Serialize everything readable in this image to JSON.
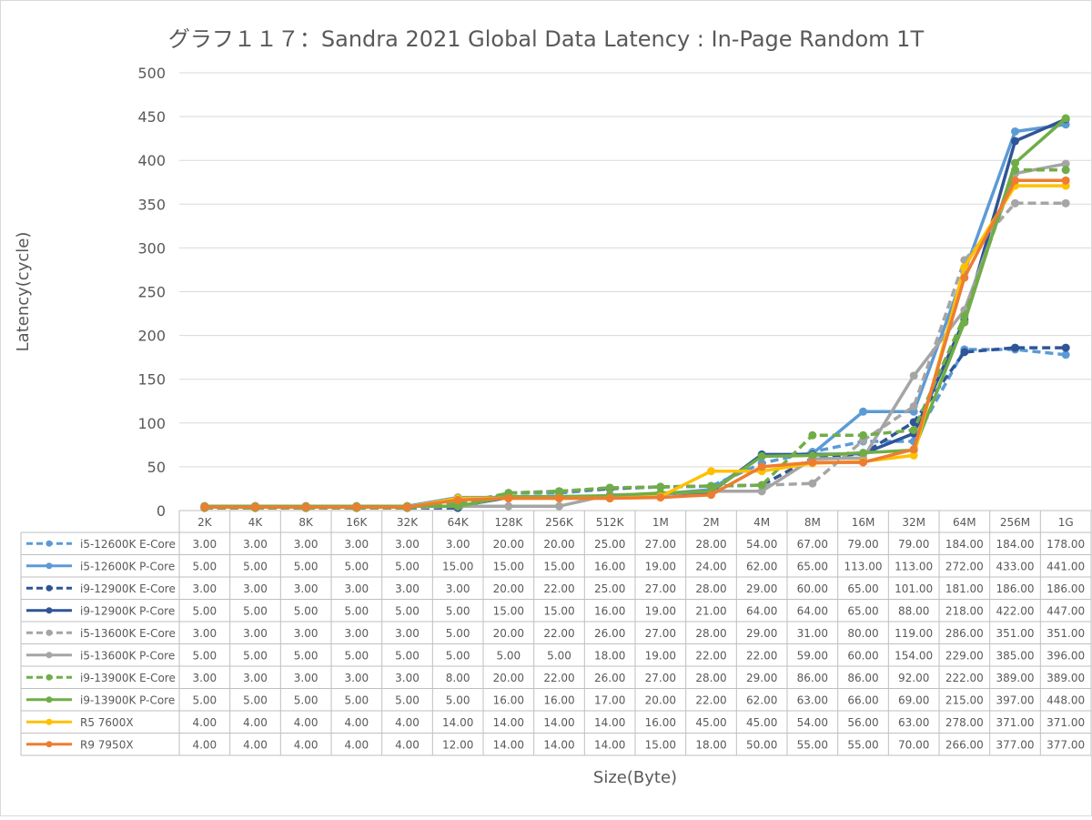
{
  "chart_data": {
    "type": "line",
    "title": "グラフ１１７：Sandra 2021 Global Data Latency : In-Page Random 1T",
    "xlabel": "Size(Byte)",
    "ylabel": "Latency(cycle)",
    "ylim": [
      0,
      500
    ],
    "yticks": [
      "0",
      "50",
      "100",
      "150",
      "200",
      "250",
      "300",
      "350",
      "400",
      "450",
      "500"
    ],
    "grid": true,
    "legend": "data-table-below",
    "categories": [
      "2K",
      "4K",
      "8K",
      "16K",
      "32K",
      "64K",
      "128K",
      "256K",
      "512K",
      "1M",
      "2M",
      "4M",
      "8M",
      "16M",
      "32M",
      "64M",
      "256M",
      "1G"
    ],
    "series": [
      {
        "name": "i5-12600K E-Core",
        "color": "#5b9bd5",
        "dash": true,
        "values": [
          3,
          3,
          3,
          3,
          3,
          3,
          20,
          20,
          25,
          27,
          28,
          54,
          67,
          79,
          79,
          184,
          184,
          178
        ]
      },
      {
        "name": "i5-12600K P-Core",
        "color": "#5b9bd5",
        "dash": false,
        "values": [
          5,
          5,
          5,
          5,
          5,
          15,
          15,
          15,
          16,
          19,
          24,
          62,
          65,
          113,
          113,
          272,
          433,
          441
        ]
      },
      {
        "name": "i9-12900K E-Core",
        "color": "#2f5597",
        "dash": true,
        "values": [
          3,
          3,
          3,
          3,
          3,
          3,
          20,
          22,
          25,
          27,
          28,
          29,
          60,
          65,
          101,
          181,
          186,
          186
        ]
      },
      {
        "name": "i9-12900K P-Core",
        "color": "#2f5597",
        "dash": false,
        "values": [
          5,
          5,
          5,
          5,
          5,
          5,
          15,
          15,
          16,
          19,
          21,
          64,
          64,
          65,
          88,
          218,
          422,
          447
        ]
      },
      {
        "name": "i5-13600K E-Core",
        "color": "#a5a5a5",
        "dash": true,
        "values": [
          3,
          3,
          3,
          3,
          3,
          5,
          20,
          22,
          26,
          27,
          28,
          29,
          31,
          80,
          119,
          286,
          351,
          351
        ]
      },
      {
        "name": "i5-13600K P-Core",
        "color": "#a5a5a5",
        "dash": false,
        "values": [
          5,
          5,
          5,
          5,
          5,
          5,
          5,
          5,
          18,
          19,
          22,
          22,
          59,
          60,
          154,
          229,
          385,
          396
        ]
      },
      {
        "name": "i9-13900K E-Core",
        "color": "#70ad47",
        "dash": true,
        "values": [
          3,
          3,
          3,
          3,
          3,
          8,
          20,
          22,
          26,
          27,
          28,
          29,
          86,
          86,
          92,
          222,
          389,
          389
        ]
      },
      {
        "name": "i9-13900K P-Core",
        "color": "#70ad47",
        "dash": false,
        "values": [
          5,
          5,
          5,
          5,
          5,
          5,
          16,
          16,
          17,
          20,
          22,
          62,
          63,
          66,
          69,
          215,
          397,
          448
        ]
      },
      {
        "name": "R5 7600X",
        "color": "#ffc000",
        "dash": false,
        "values": [
          4,
          4,
          4,
          4,
          4,
          14,
          14,
          14,
          14,
          16,
          45,
          45,
          54,
          56,
          63,
          278,
          371,
          371
        ]
      },
      {
        "name": "R9 7950X",
        "color": "#ed7d31",
        "dash": false,
        "values": [
          4,
          4,
          4,
          4,
          4,
          12,
          14,
          14,
          14,
          15,
          18,
          50,
          55,
          55,
          70,
          266,
          377,
          377
        ]
      }
    ]
  }
}
